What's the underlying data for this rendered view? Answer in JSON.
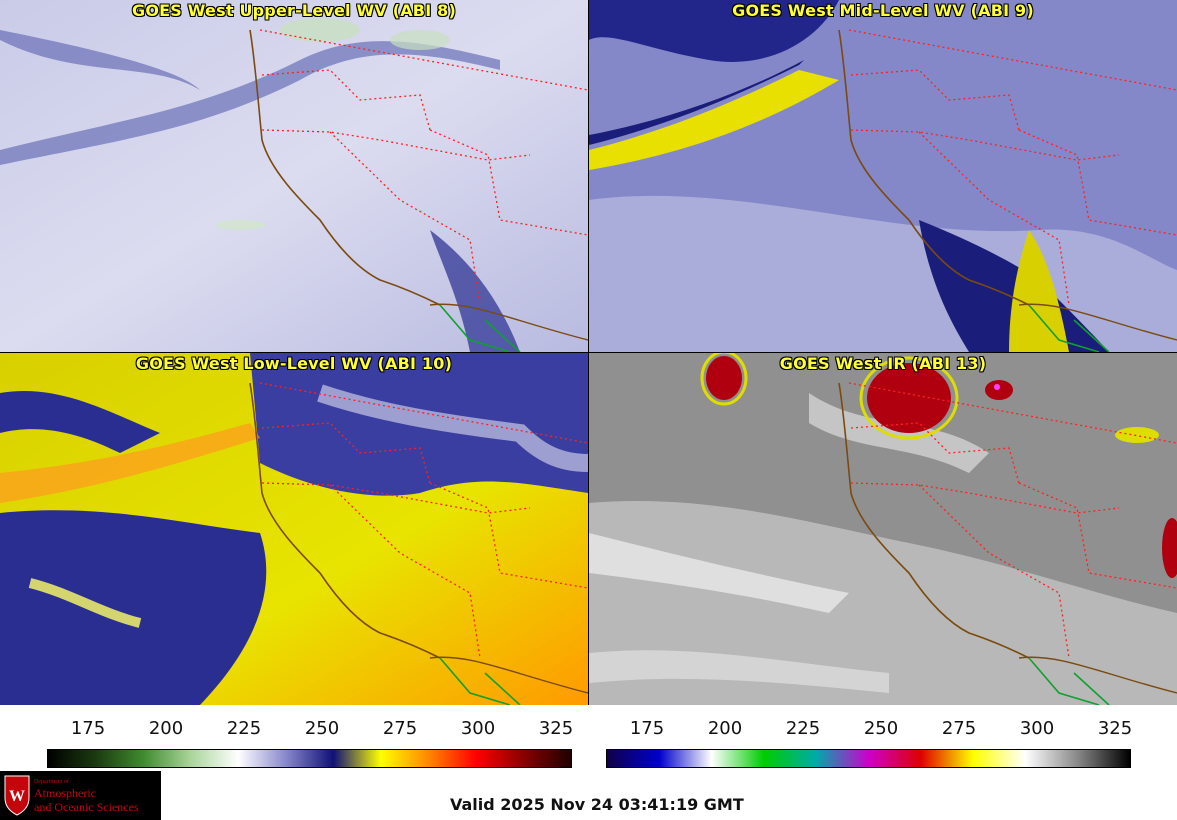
{
  "panels": [
    {
      "title": "GOES West Upper-Level WV (ABI 8)"
    },
    {
      "title": "GOES West Mid-Level WV (ABI 9)"
    },
    {
      "title": "GOES West Low-Level WV (ABI 10)"
    },
    {
      "title": "GOES West IR (ABI 13)"
    }
  ],
  "colorbars": {
    "wv": {
      "ticks": [
        "175",
        "200",
        "225",
        "250",
        "275",
        "300",
        "325"
      ],
      "colors": [
        "#000000",
        "#1b3a10",
        "#3f8a2f",
        "#a9d59a",
        "#ffffff",
        "#8888cc",
        "#101078",
        "#ffff00",
        "#ff8800",
        "#ff0000",
        "#880000",
        "#200000"
      ]
    },
    "ir": {
      "ticks": [
        "175",
        "200",
        "225",
        "250",
        "275",
        "300",
        "325"
      ],
      "colors": [
        "#10004a",
        "#0000cc",
        "#ffffff",
        "#00cc00",
        "#00aaaa",
        "#cc00cc",
        "#dd0000",
        "#ffff00",
        "#ffffff",
        "#888888",
        "#000000"
      ]
    }
  },
  "logo": {
    "dept_label": "Department of",
    "line1": "Atmospheric",
    "line2": "and Oceanic Sciences"
  },
  "footer": {
    "valid_text": "Valid 2025 Nov 24 03:41:19 GMT"
  },
  "map_colors": {
    "state_border": "#ff2020",
    "coast": "#7a4a10",
    "mexico": "#10a030"
  }
}
